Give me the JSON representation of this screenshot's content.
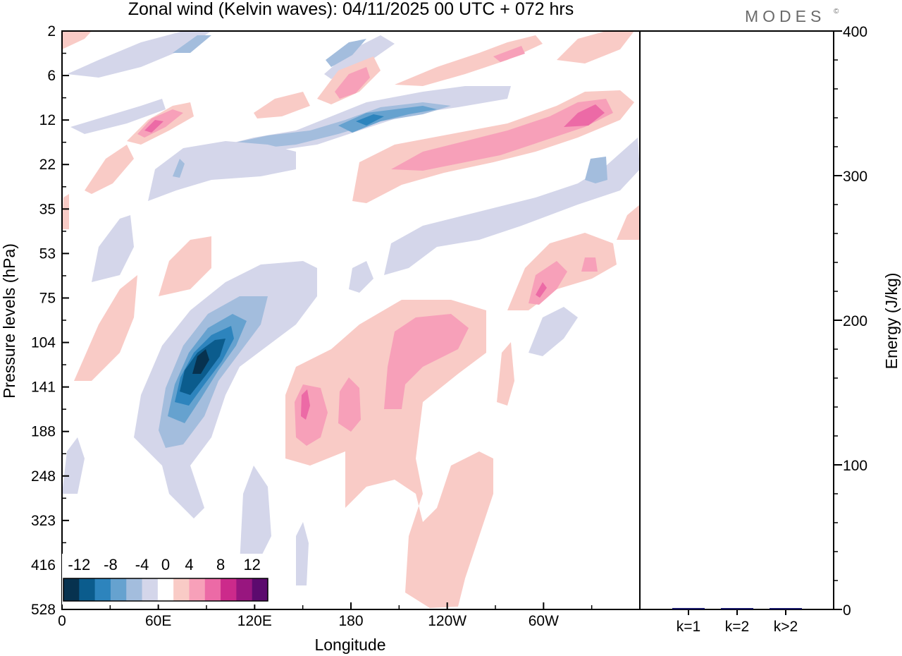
{
  "chart_data": [
    {
      "type": "heatmap",
      "title": "Zonal wind (Kelvin waves):  04/11/2025  00 UTC  + 072 hrs",
      "xlabel": "Longitude",
      "ylabel": "Pressure levels (hPa)",
      "x_ticks": [
        "0",
        "60E",
        "120E",
        "180",
        "120W",
        "60W"
      ],
      "y_ticks": [
        "2",
        "6",
        "12",
        "22",
        "35",
        "53",
        "75",
        "104",
        "141",
        "188",
        "248",
        "323",
        "416",
        "528"
      ],
      "colorbar": {
        "labels": [
          "-12",
          "-8",
          "-4",
          "0",
          "4",
          "8",
          "12"
        ],
        "levels": [
          -14,
          -12,
          -10,
          -8,
          -6,
          -4,
          -2,
          2,
          4,
          6,
          8,
          10,
          12,
          14
        ],
        "colors": [
          "#07324f",
          "#0b5c8d",
          "#2d84bd",
          "#66a2cf",
          "#a3bddd",
          "#d4d6ea",
          "#ffffff",
          "#f9cbc6",
          "#f7a0b9",
          "#ec6aa6",
          "#cc2a8b",
          "#98167f",
          "#5c0a6e"
        ]
      },
      "features": [
        {
          "name": "blue-upper-band-1",
          "lon": 30,
          "hPa": 10,
          "value": -2,
          "width_deg": 40,
          "tilt": -10
        },
        {
          "name": "blue-upper-band-2",
          "lon": 190,
          "hPa": 13,
          "value": -6,
          "width_deg": 50,
          "tilt": -5
        },
        {
          "name": "pink-upper-band-1",
          "lon": 290,
          "hPa": 14,
          "value": 7,
          "width_deg": 60,
          "tilt": -8
        },
        {
          "name": "pink-upper-band-2",
          "lon": 160,
          "hPa": 7,
          "value": 5,
          "width_deg": 35,
          "tilt": -12
        },
        {
          "name": "pink-mid-band",
          "lon": 230,
          "hPa": 22,
          "value": 6,
          "width_deg": 70,
          "tilt": -6
        },
        {
          "name": "blue-mid-band",
          "lon": 250,
          "hPa": 40,
          "value": -3,
          "width_deg": 80,
          "tilt": -5
        },
        {
          "name": "blue-core-lower",
          "lon": 88,
          "hPa": 120,
          "value": -14,
          "width_deg": 25,
          "tilt": -35
        },
        {
          "name": "pink-lower-anomaly",
          "lon": 175,
          "hPa": 150,
          "value": 7,
          "width_deg": 60,
          "tilt": -5
        },
        {
          "name": "pink-deep-tongue",
          "lon": 210,
          "hPa": 400,
          "value": 3,
          "width_deg": 30,
          "tilt": 0
        },
        {
          "name": "pink-east-anomaly",
          "lon": 300,
          "hPa": 70,
          "value": 8,
          "width_deg": 25,
          "tilt": -30
        }
      ]
    },
    {
      "type": "bar",
      "ylabel": "Energy (J/kg)",
      "categories": [
        "k=1",
        "k=2",
        "k>2"
      ],
      "values": [
        1.0,
        0.5,
        0.5
      ],
      "ylim": [
        0,
        400
      ],
      "y_ticks": [
        "0",
        "100",
        "200",
        "300",
        "400"
      ],
      "bar_color": "#151565"
    }
  ],
  "brand": "MODES",
  "brand_mark": "©"
}
